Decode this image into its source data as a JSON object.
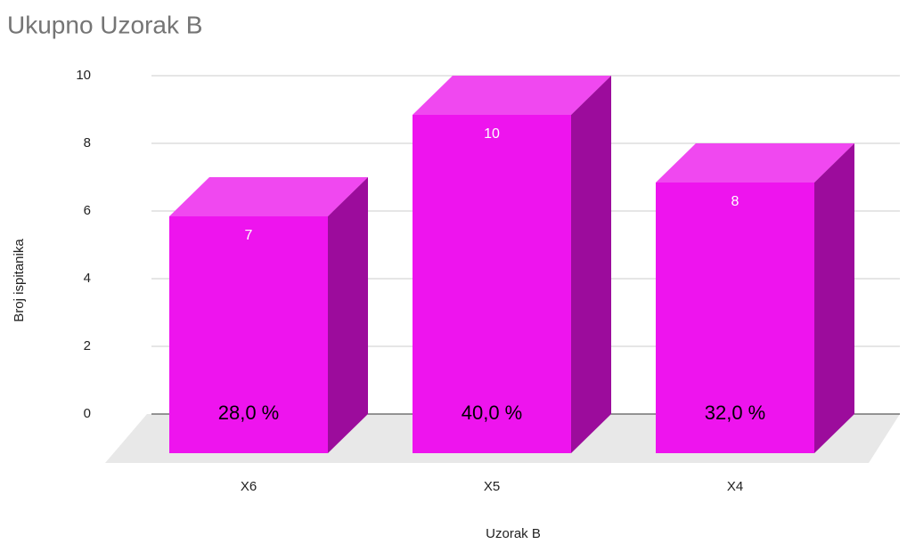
{
  "chart_data": {
    "type": "bar3d",
    "title": "Ukupno Uzorak B",
    "x_label": "Uzorak B",
    "y_label": "Broj ispitanika",
    "categories": [
      "X6",
      "X5",
      "X4"
    ],
    "values": [
      7,
      10,
      8
    ],
    "annotations": [
      "28,0 %",
      "40,0 %",
      "32,0 %"
    ],
    "color": "#ee14ee",
    "ylim": [
      0,
      10
    ],
    "yticks": [
      0,
      2,
      4,
      6,
      8,
      10
    ],
    "grid": true
  }
}
